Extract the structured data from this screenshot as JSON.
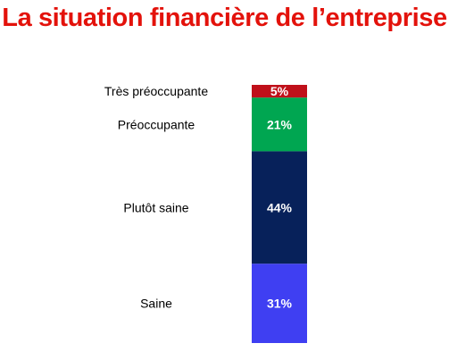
{
  "title": "La situation financière de l’entreprise",
  "colors": {
    "title": "#e3120b"
  },
  "chart_data": {
    "type": "bar",
    "stacked": true,
    "orientation": "vertical",
    "title": "La situation financière de l’entreprise",
    "segments": [
      {
        "category": "Très préoccupante",
        "value": 5,
        "label": "5%",
        "color": "#c0101a"
      },
      {
        "category": "Préoccupante",
        "value": 21,
        "label": "21%",
        "color": "#00a651"
      },
      {
        "category": "Plutôt saine",
        "value": 44,
        "label": "44%",
        "color": "#07215a"
      },
      {
        "category": "Saine",
        "value": 31,
        "label": "31%",
        "color": "#3f3ff2"
      }
    ],
    "xlabel": "",
    "ylabel": "",
    "grid": false,
    "legend": "none"
  }
}
